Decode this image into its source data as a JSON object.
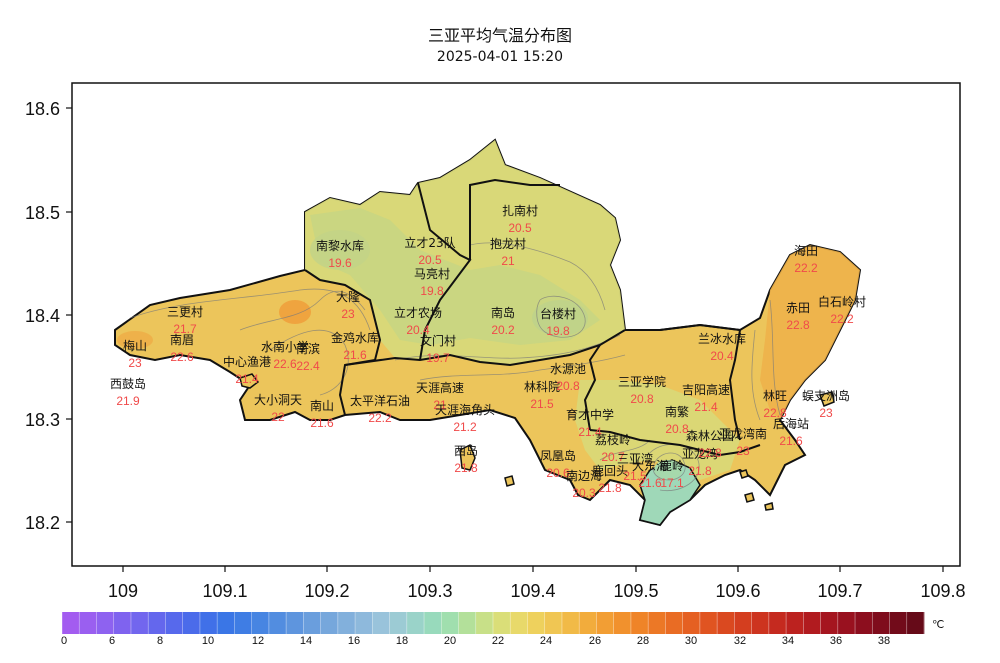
{
  "title": "三亚平均气温分布图",
  "subtitle": "2025-04-01 15:20",
  "axes": {
    "x_ticks": [
      "109",
      "109.1",
      "109.2",
      "109.3",
      "109.4",
      "109.5",
      "109.6",
      "109.7",
      "109.8"
    ],
    "y_ticks": [
      "18.6",
      "18.5",
      "18.4",
      "18.3",
      "18.2"
    ]
  },
  "colorbar": {
    "unit": "℃",
    "labels": [
      "0",
      "6",
      "8",
      "10",
      "12",
      "14",
      "16",
      "18",
      "20",
      "22",
      "24",
      "26",
      "28",
      "30",
      "32",
      "34",
      "36",
      "38"
    ],
    "colors": [
      "#a35cf0",
      "#9a5ff0",
      "#8e62f0",
      "#7f63ef",
      "#7266ee",
      "#6467ed",
      "#5769ec",
      "#4b6bea",
      "#4070e8",
      "#3a76e6",
      "#3f7de4",
      "#4785e2",
      "#528de0",
      "#5e95de",
      "#6a9edd",
      "#76a7dc",
      "#82b0dc",
      "#8eb9dc",
      "#99c3db",
      "#9ccbd4",
      "#9ad3c9",
      "#98dabc",
      "#a0dfae",
      "#b3e09a",
      "#c8e088",
      "#dade78",
      "#e8d96a",
      "#eed15d",
      "#f0c653",
      "#f1ba47",
      "#f2ac3c",
      "#f29e34",
      "#f1912d",
      "#ef8428",
      "#ec7826",
      "#e96c24",
      "#e56022",
      "#e05421",
      "#da4920",
      "#d43e1f",
      "#cd341f",
      "#c52a1f",
      "#bc221f",
      "#b11b1f",
      "#a5151f",
      "#99111f",
      "#8c0e1e",
      "#7f0c1c",
      "#720b1a",
      "#660a18"
    ]
  },
  "stations": [
    {
      "name": "南黎水库",
      "value": "19.6"
    },
    {
      "name": "立才23队",
      "value": "20.5"
    },
    {
      "name": "马亮村",
      "value": "19.8"
    },
    {
      "name": "扎南村",
      "value": "20.5"
    },
    {
      "name": "抱龙村",
      "value": "21"
    },
    {
      "name": "三更村",
      "value": "21.7"
    },
    {
      "name": "梅山",
      "value": "23"
    },
    {
      "name": "南眉",
      "value": "22.6"
    },
    {
      "name": "西鼓岛",
      "value": "21.9"
    },
    {
      "name": "中心渔港",
      "value": "21.4"
    },
    {
      "name": "水南小学",
      "value": "22.6"
    },
    {
      "name": "南滨",
      "value": "22.4"
    },
    {
      "name": "大隆",
      "value": "23"
    },
    {
      "name": "金鸡水库",
      "value": "21.6"
    },
    {
      "name": "立才农场",
      "value": "20.4"
    },
    {
      "name": "文门村",
      "value": "19.7"
    },
    {
      "name": "南岛",
      "value": "20.2"
    },
    {
      "name": "台楼村",
      "value": "19.8"
    },
    {
      "name": "大小洞天",
      "value": "22"
    },
    {
      "name": "南山",
      "value": "21.6"
    },
    {
      "name": "太平洋石油",
      "value": "22.2"
    },
    {
      "name": "天涯高速",
      "value": "21"
    },
    {
      "name": "天涯海角头",
      "value": "21.2"
    },
    {
      "name": "林科院",
      "value": "21.5"
    },
    {
      "name": "水源池",
      "value": "20.8"
    },
    {
      "name": "西岛",
      "value": "21.8"
    },
    {
      "name": "育才中学",
      "value": "21.4"
    },
    {
      "name": "凤凰岛",
      "value": "20.6"
    },
    {
      "name": "荔枝岭",
      "value": "20.7"
    },
    {
      "name": "南边海",
      "value": "20.3"
    },
    {
      "name": "鹿回头",
      "value": "21.8"
    },
    {
      "name": "三亚湾",
      "value": "21.5"
    },
    {
      "name": "大东海",
      "value": "21.6"
    },
    {
      "name": "鹿岭",
      "value": "17.1"
    },
    {
      "name": "亚龙湾",
      "value": "21.8"
    },
    {
      "name": "三亚学院",
      "value": "20.8"
    },
    {
      "name": "南繁",
      "value": "20.8"
    },
    {
      "name": "吉阳高速",
      "value": "21.4"
    },
    {
      "name": "兰冰水库",
      "value": "20.4"
    },
    {
      "name": "森林公园",
      "value": "22.8"
    },
    {
      "name": "亚龙湾南",
      "value": "23"
    },
    {
      "name": "海田",
      "value": "22.2"
    },
    {
      "name": "赤田",
      "value": "22.8"
    },
    {
      "name": "白石岭村",
      "value": "22.2"
    },
    {
      "name": "林旺",
      "value": "22.8"
    },
    {
      "name": "蜈支洲岛",
      "value": "23"
    },
    {
      "name": "后海站",
      "value": "21.6"
    }
  ]
}
